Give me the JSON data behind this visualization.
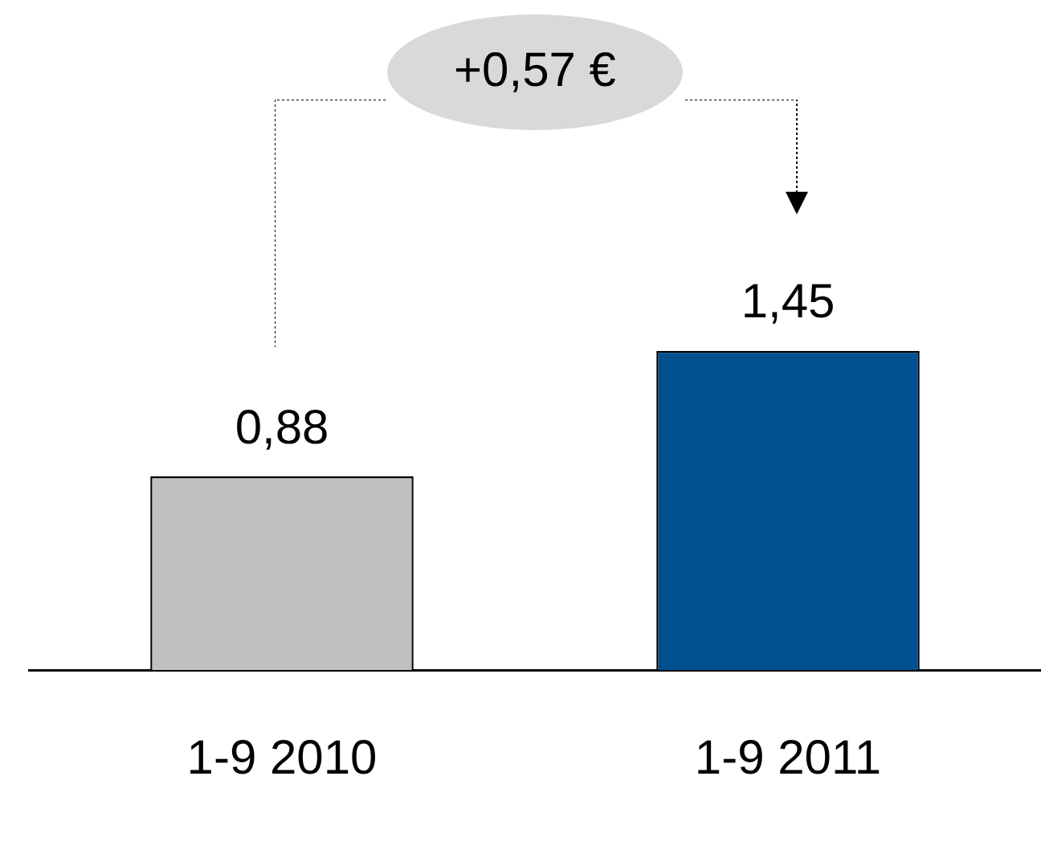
{
  "chart_data": {
    "type": "bar",
    "categories": [
      "1-9 2010",
      "1-9 2011"
    ],
    "values": [
      0.88,
      1.45
    ],
    "colors": [
      "#c0c0c0",
      "#00508f"
    ],
    "value_labels": [
      "0,88",
      "1,45"
    ],
    "annotations": [
      "+0,57 €"
    ],
    "grid": false,
    "legend": false
  }
}
